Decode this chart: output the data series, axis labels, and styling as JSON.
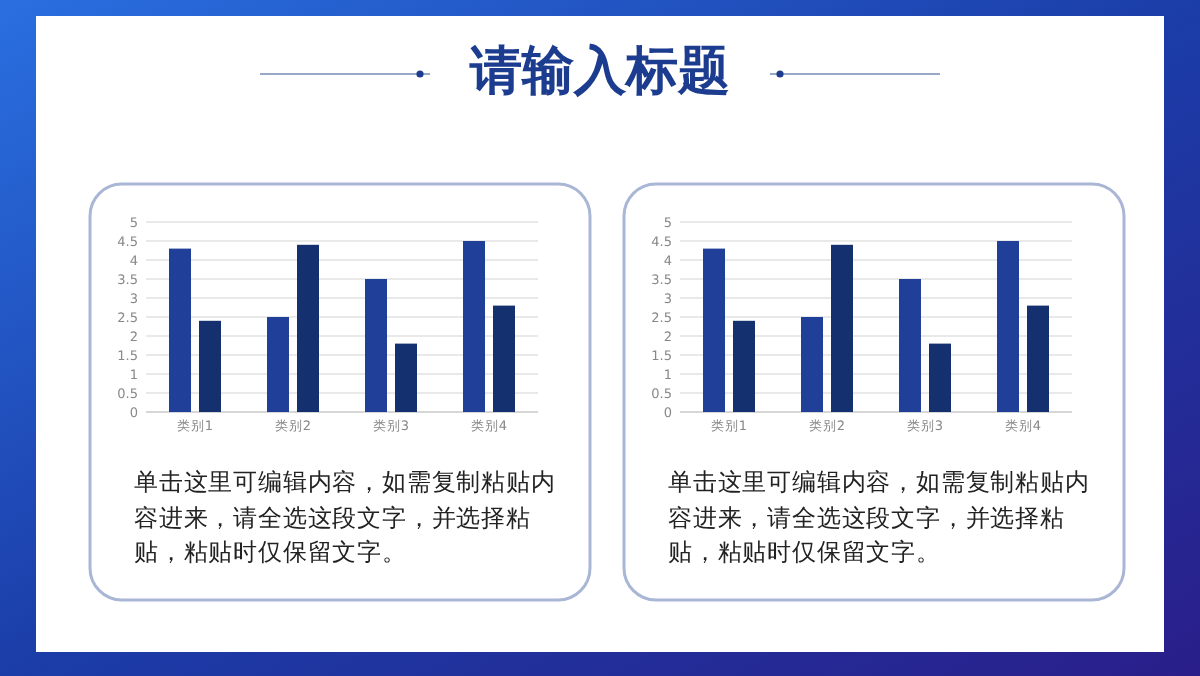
{
  "chart_data": [
    {
      "type": "bar",
      "title": "请输入标题",
      "categories": [
        "类别1",
        "类别2",
        "类别3",
        "类别4"
      ],
      "series": [
        {
          "color": "#1f3f99",
          "values": [
            4.3,
            2.5,
            3.5,
            4.5
          ]
        },
        {
          "color": "#15306e",
          "values": [
            2.4,
            4.4,
            1.8,
            2.8
          ]
        }
      ],
      "ylim": [
        0,
        5
      ],
      "yticks": [
        0,
        0.5,
        1,
        1.5,
        2,
        2.5,
        3,
        3.5,
        4,
        4.5,
        5
      ],
      "grid": "y",
      "annotations": [
        "单击这里可编辑内容，如需复制粘贴内容进来，请全选这段文字，并选择粘贴，粘贴时仅保留文字。"
      ]
    },
    {
      "type": "bar",
      "categories": [
        "类别1",
        "类别2",
        "类别3",
        "类别4"
      ],
      "series": [
        {
          "color": "#1f3f99",
          "values": [
            4.3,
            2.5,
            3.5,
            4.5
          ]
        },
        {
          "color": "#15306e",
          "values": [
            2.4,
            4.4,
            1.8,
            2.8
          ]
        }
      ],
      "ylim": [
        0,
        5
      ],
      "yticks": [
        0,
        0.5,
        1,
        1.5,
        2,
        2.5,
        3,
        3.5,
        4,
        4.5,
        5
      ],
      "grid": "y",
      "annotations": [
        "单击这里可编辑内容，如需复制粘贴内容进来，请全选这段文字，并选择粘贴，粘贴时仅保留文字。"
      ]
    }
  ]
}
